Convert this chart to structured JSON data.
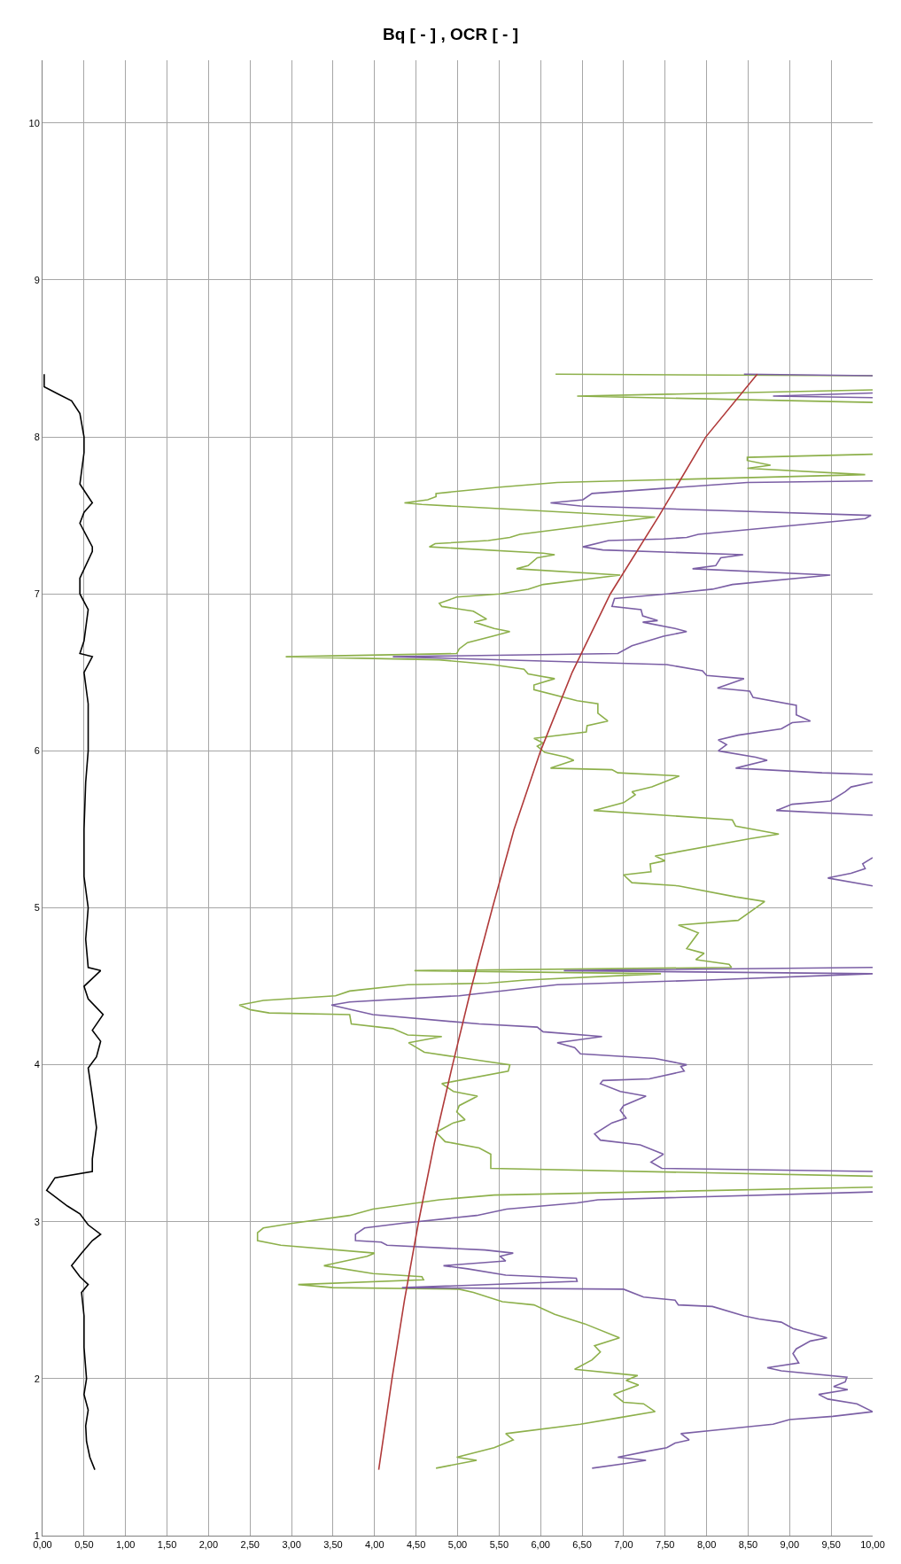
{
  "chart_data": {
    "type": "line",
    "title": "Bq [ - ] , OCR [ - ]",
    "xlim": [
      0,
      10
    ],
    "ylim": [
      1,
      10.4
    ],
    "xticks": [
      {
        "value": 0,
        "label": "0,00"
      },
      {
        "value": 0.5,
        "label": "0,50"
      },
      {
        "value": 1,
        "label": "1,00"
      },
      {
        "value": 1.5,
        "label": "1,50"
      },
      {
        "value": 2,
        "label": "2,00"
      },
      {
        "value": 2.5,
        "label": "2,50"
      },
      {
        "value": 3,
        "label": "3,00"
      },
      {
        "value": 3.5,
        "label": "3,50"
      },
      {
        "value": 4,
        "label": "4,00"
      },
      {
        "value": 4.5,
        "label": "4,50"
      },
      {
        "value": 5,
        "label": "5,00"
      },
      {
        "value": 5.5,
        "label": "5,50"
      },
      {
        "value": 6,
        "label": "6,00"
      },
      {
        "value": 6.5,
        "label": "6,50"
      },
      {
        "value": 7,
        "label": "7,00"
      },
      {
        "value": 7.5,
        "label": "7,50"
      },
      {
        "value": 8,
        "label": "8,00"
      },
      {
        "value": 8.5,
        "label": "8,50"
      },
      {
        "value": 9,
        "label": "9,00"
      },
      {
        "value": 9.5,
        "label": "9,50"
      },
      {
        "value": 10,
        "label": "10,00"
      }
    ],
    "yticks": [
      1,
      2,
      3,
      4,
      5,
      6,
      7,
      8,
      9,
      10
    ],
    "grid": true,
    "series": [
      {
        "color": "#000000",
        "x": [
          0.63,
          0.57,
          0.53,
          0.52,
          0.55,
          0.5,
          0.53,
          0.5,
          0.5,
          0.47,
          0.55,
          0.45,
          0.35,
          0.47,
          0.6,
          0.7,
          0.55,
          0.45,
          0.3,
          0.05,
          0.15,
          0.6,
          0.6,
          0.65,
          0.6,
          0.55,
          0.65,
          0.7,
          0.6,
          0.73,
          0.55,
          0.5,
          0.7,
          0.55,
          0.52,
          0.55,
          0.5,
          0.5,
          0.52,
          0.55,
          0.55,
          0.5,
          0.6,
          0.45,
          0.5,
          0.55,
          0.45,
          0.45,
          0.6,
          0.6,
          0.45,
          0.5,
          0.6,
          0.45,
          0.5,
          0.5,
          0.45,
          0.35,
          0.2,
          0.02,
          0.02
        ],
        "values": [
          1.42,
          1.5,
          1.6,
          1.7,
          1.8,
          1.9,
          2.0,
          2.2,
          2.4,
          2.55,
          2.6,
          2.65,
          2.72,
          2.8,
          2.88,
          2.92,
          2.98,
          3.05,
          3.1,
          3.2,
          3.28,
          3.32,
          3.4,
          3.6,
          3.8,
          3.98,
          4.05,
          4.15,
          4.22,
          4.32,
          4.42,
          4.5,
          4.6,
          4.62,
          4.8,
          5.0,
          5.2,
          5.5,
          5.8,
          6.0,
          6.3,
          6.5,
          6.6,
          6.62,
          6.7,
          6.9,
          7.0,
          7.1,
          7.27,
          7.3,
          7.45,
          7.52,
          7.58,
          7.7,
          7.9,
          8.0,
          8.15,
          8.23,
          8.27,
          8.32,
          8.4
        ]
      },
      {
        "color": "#8db04b",
        "x": [
          4.74,
          5.23,
          4.99,
          5.44,
          5.67,
          5.58,
          6.48,
          6.93,
          7.38,
          7.24,
          7.0,
          6.88,
          7.18,
          7.03,
          7.17,
          6.41,
          6.62,
          6.72,
          6.65,
          6.95,
          6.53,
          6.17,
          5.92,
          5.54,
          5.19,
          5.02,
          3.5,
          3.08,
          4.59,
          4.57,
          3.98,
          3.39,
          3.91,
          4.0,
          2.87,
          2.59,
          2.59,
          2.66,
          3.01,
          3.7,
          3.98,
          4.78,
          5.44,
          10,
          null,
          10,
          5.4,
          5.4,
          5.26,
          4.85,
          4.74,
          4.95,
          5.09,
          4.99,
          5.02,
          5.24,
          4.95,
          4.81,
          5.61,
          5.63,
          5.23,
          4.6,
          4.41,
          4.81,
          4.4,
          4.22,
          3.72,
          3.7,
          2.73,
          2.51,
          2.37,
          2.66,
          3.53,
          3.7,
          4.4,
          5.37,
          5.82,
          7.45,
          4.48,
          8.3,
          8.27,
          7.87,
          7.97,
          7.76,
          7.9,
          7.76,
          7.66,
          8.38,
          8.7,
          8.35,
          7.66,
          7.1,
          7.0,
          7.33,
          7.32,
          7.5,
          7.38,
          8.52,
          8.87,
          8.35,
          8.31,
          6.64,
          7.0,
          7.14,
          7.1,
          7.34,
          7.67,
          6.93,
          6.86,
          6.12,
          6.4,
          6.31,
          6.05,
          5.96,
          6.03,
          5.92,
          6.55,
          6.56,
          6.81,
          6.69,
          6.69,
          6.44,
          5.92,
          5.92,
          6.17,
          5.85,
          5.8,
          5.42,
          4.78,
          2.93,
          4.99,
          5.02,
          5.12,
          5.42,
          5.63,
          5.44,
          5.2,
          5.35,
          5.19,
          4.81,
          4.78,
          4.99,
          5.51,
          5.85,
          6.03,
          6.96,
          5.71,
          5.85,
          5.96,
          6.17,
          6.03,
          4.66,
          4.73,
          5.37,
          5.63,
          5.75,
          7.38,
          4.57,
          4.36,
          4.64,
          4.74,
          4.74,
          5.51,
          6.2,
          9.91,
          8.49,
          8.77,
          8.49,
          8.49,
          10,
          null,
          10,
          6.44,
          10,
          null,
          10,
          6.18
        ],
        "values": [
          1.43,
          1.48,
          1.5,
          1.56,
          1.61,
          1.65,
          1.71,
          1.75,
          1.79,
          1.84,
          1.85,
          1.9,
          1.96,
          1.99,
          2.02,
          2.06,
          2.12,
          2.17,
          2.21,
          2.26,
          2.35,
          2.41,
          2.47,
          2.49,
          2.55,
          2.57,
          2.58,
          2.6,
          2.63,
          2.65,
          2.67,
          2.72,
          2.78,
          2.8,
          2.85,
          2.88,
          2.93,
          2.96,
          2.99,
          3.04,
          3.08,
          3.14,
          3.17,
          3.22,
          null,
          3.29,
          3.34,
          3.43,
          3.47,
          3.51,
          3.57,
          3.63,
          3.65,
          3.7,
          3.74,
          3.8,
          3.83,
          3.88,
          3.96,
          4.0,
          4.03,
          4.08,
          4.14,
          4.18,
          4.19,
          4.23,
          4.26,
          4.32,
          4.33,
          4.35,
          4.38,
          4.41,
          4.44,
          4.47,
          4.51,
          4.52,
          4.54,
          4.58,
          4.6,
          4.62,
          4.64,
          4.67,
          4.71,
          4.74,
          4.84,
          4.87,
          4.89,
          4.92,
          5.04,
          5.07,
          5.14,
          5.16,
          5.21,
          5.23,
          5.28,
          5.3,
          5.33,
          5.44,
          5.47,
          5.52,
          5.56,
          5.62,
          5.67,
          5.72,
          5.74,
          5.77,
          5.84,
          5.86,
          5.88,
          5.89,
          5.94,
          5.96,
          5.99,
          6.03,
          6.05,
          6.08,
          6.12,
          6.16,
          6.19,
          6.24,
          6.3,
          6.32,
          6.39,
          6.42,
          6.46,
          6.49,
          6.52,
          6.55,
          6.58,
          6.6,
          6.62,
          6.65,
          6.69,
          6.73,
          6.76,
          6.78,
          6.82,
          6.84,
          6.89,
          6.92,
          6.94,
          6.98,
          7.0,
          7.03,
          7.06,
          7.12,
          7.16,
          7.18,
          7.23,
          7.25,
          7.26,
          7.3,
          7.32,
          7.34,
          7.36,
          7.38,
          7.49,
          7.57,
          7.58,
          7.6,
          7.62,
          7.64,
          7.68,
          7.71,
          7.76,
          7.8,
          7.82,
          7.85,
          7.87,
          7.89,
          null,
          8.22,
          8.26,
          8.3,
          null,
          8.39,
          8.4
        ]
      },
      {
        "color": "#7b5fa5",
        "x": [
          6.62,
          7.03,
          7.27,
          6.93,
          7.31,
          7.52,
          7.62,
          7.79,
          7.69,
          8.07,
          8.8,
          9.0,
          9.52,
          10,
          9.81,
          9.46,
          9.35,
          9.7,
          9.53,
          9.67,
          9.69,
          8.9,
          8.73,
          9.11,
          9.04,
          9.08,
          9.25,
          9.45,
          9.04,
          8.9,
          8.63,
          8.45,
          8.07,
          7.66,
          7.62,
          7.24,
          7.0,
          4.33,
          6.44,
          6.43,
          5.58,
          5.12,
          4.83,
          5.58,
          5.51,
          5.67,
          5.33,
          4.15,
          4.08,
          3.77,
          3.77,
          3.88,
          4.33,
          5.23,
          5.59,
          6.44,
          6.69,
          10,
          null,
          10,
          7.46,
          7.33,
          7.48,
          7.2,
          6.72,
          6.65,
          6.86,
          7.03,
          6.96,
          7.0,
          7.27,
          6.96,
          6.72,
          6.75,
          7.31,
          7.73,
          7.69,
          7.76,
          7.38,
          6.48,
          6.41,
          6.2,
          6.74,
          6.03,
          5.96,
          5.26,
          3.98,
          3.48,
          3.7,
          5.02,
          6.2,
          8.0,
          10,
          6.28,
          10,
          null,
          10,
          9.46,
          9.74,
          9.91,
          9.88,
          10,
          null,
          10,
          8.84,
          9.03,
          9.49,
          9.67,
          9.74,
          10,
          null,
          10,
          9.39,
          8.35,
          8.73,
          8.59,
          8.14,
          8.24,
          8.14,
          8.38,
          8.9,
          9.03,
          9.25,
          9.08,
          9.08,
          8.56,
          8.52,
          8.13,
          8.45,
          8.0,
          7.95,
          7.52,
          4.22,
          6.93,
          7.1,
          7.48,
          7.76,
          7.62,
          7.23,
          7.41,
          7.23,
          7.21,
          6.86,
          6.89,
          7.52,
          8.07,
          8.31,
          9.49,
          7.83,
          8.11,
          8.17,
          8.44,
          6.75,
          6.51,
          6.82,
          7.48,
          7.76,
          7.9,
          9.91,
          9.98,
          6.48,
          6.12,
          6.51,
          6.62,
          8.49,
          10,
          null,
          10,
          8.8,
          10,
          null,
          10,
          8.45
        ],
        "values": [
          1.43,
          1.46,
          1.48,
          1.5,
          1.54,
          1.56,
          1.59,
          1.61,
          1.65,
          1.67,
          1.71,
          1.74,
          1.76,
          1.79,
          1.84,
          1.87,
          1.9,
          1.93,
          1.95,
          1.98,
          2.01,
          2.05,
          2.07,
          2.1,
          2.16,
          2.19,
          2.24,
          2.26,
          2.32,
          2.36,
          2.38,
          2.4,
          2.46,
          2.47,
          2.5,
          2.52,
          2.57,
          2.58,
          2.62,
          2.64,
          2.66,
          2.7,
          2.72,
          2.75,
          2.78,
          2.8,
          2.82,
          2.85,
          2.87,
          2.88,
          2.92,
          2.96,
          2.99,
          3.04,
          3.08,
          3.12,
          3.14,
          3.19,
          null,
          3.32,
          3.34,
          3.38,
          3.43,
          3.49,
          3.52,
          3.56,
          3.63,
          3.66,
          3.71,
          3.74,
          3.8,
          3.83,
          3.88,
          3.9,
          3.91,
          3.96,
          3.99,
          4.0,
          4.04,
          4.07,
          4.11,
          4.14,
          4.18,
          4.21,
          4.24,
          4.26,
          4.32,
          4.38,
          4.4,
          4.44,
          4.51,
          4.54,
          4.58,
          4.6,
          4.62,
          null,
          5.14,
          5.19,
          5.22,
          5.25,
          5.28,
          5.32,
          null,
          5.59,
          5.62,
          5.66,
          5.68,
          5.74,
          5.77,
          5.8,
          null,
          5.85,
          5.86,
          5.89,
          5.94,
          5.96,
          6.0,
          6.04,
          6.07,
          6.1,
          6.14,
          6.18,
          6.19,
          6.23,
          6.29,
          6.34,
          6.38,
          6.4,
          6.46,
          6.48,
          6.51,
          6.55,
          6.6,
          6.62,
          6.67,
          6.73,
          6.76,
          6.78,
          6.82,
          6.83,
          6.86,
          6.9,
          6.92,
          6.97,
          7.0,
          7.03,
          7.06,
          7.12,
          7.16,
          7.18,
          7.23,
          7.25,
          7.28,
          7.3,
          7.34,
          7.35,
          7.36,
          7.38,
          7.48,
          7.5,
          7.56,
          7.58,
          7.6,
          7.64,
          7.71,
          7.72,
          null,
          8.25,
          8.26,
          8.28,
          null,
          8.39,
          8.4
        ]
      },
      {
        "color": "#b03a3a",
        "x": [
          4.05,
          4.21,
          4.36,
          4.53,
          4.72,
          4.94,
          5.17,
          5.42,
          5.68,
          6.0,
          6.38,
          6.84,
          7.43,
          7.99,
          8.61
        ],
        "values": [
          1.42,
          2.0,
          2.5,
          3.0,
          3.5,
          4.0,
          4.5,
          5.0,
          5.5,
          6.0,
          6.5,
          7.0,
          7.5,
          8.0,
          8.4
        ]
      }
    ]
  }
}
